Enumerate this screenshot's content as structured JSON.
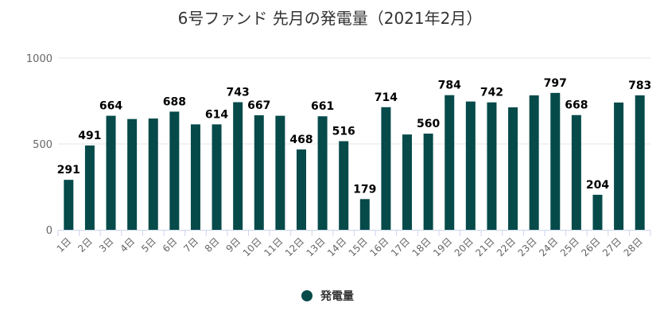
{
  "chart_data": {
    "type": "bar",
    "title": "6号ファンド 先月の発電量（2021年2月）",
    "xlabel": "",
    "ylabel": "",
    "ylim": [
      0,
      1000
    ],
    "yticks": [
      0,
      500,
      1000
    ],
    "grid": true,
    "legend_position": "bottom",
    "categories": [
      "1日",
      "2日",
      "3日",
      "4日",
      "5日",
      "6日",
      "7日",
      "8日",
      "9日",
      "10日",
      "11日",
      "12日",
      "13日",
      "14日",
      "15日",
      "16日",
      "17日",
      "18日",
      "19日",
      "20日",
      "21日",
      "22日",
      "23日",
      "24日",
      "25日",
      "26日",
      "27日",
      "28日"
    ],
    "series": [
      {
        "name": "発電量",
        "color": "#064a4a",
        "values": [
          291,
          491,
          664,
          645,
          648,
          688,
          614,
          614,
          743,
          667,
          664,
          468,
          661,
          516,
          179,
          714,
          555,
          560,
          784,
          747,
          742,
          713,
          783,
          797,
          668,
          204,
          741,
          783
        ],
        "shown_labels": [
          291,
          491,
          664,
          null,
          null,
          688,
          null,
          614,
          743,
          667,
          null,
          468,
          661,
          516,
          179,
          714,
          null,
          560,
          784,
          null,
          742,
          null,
          null,
          797,
          668,
          204,
          null,
          783
        ]
      }
    ]
  }
}
